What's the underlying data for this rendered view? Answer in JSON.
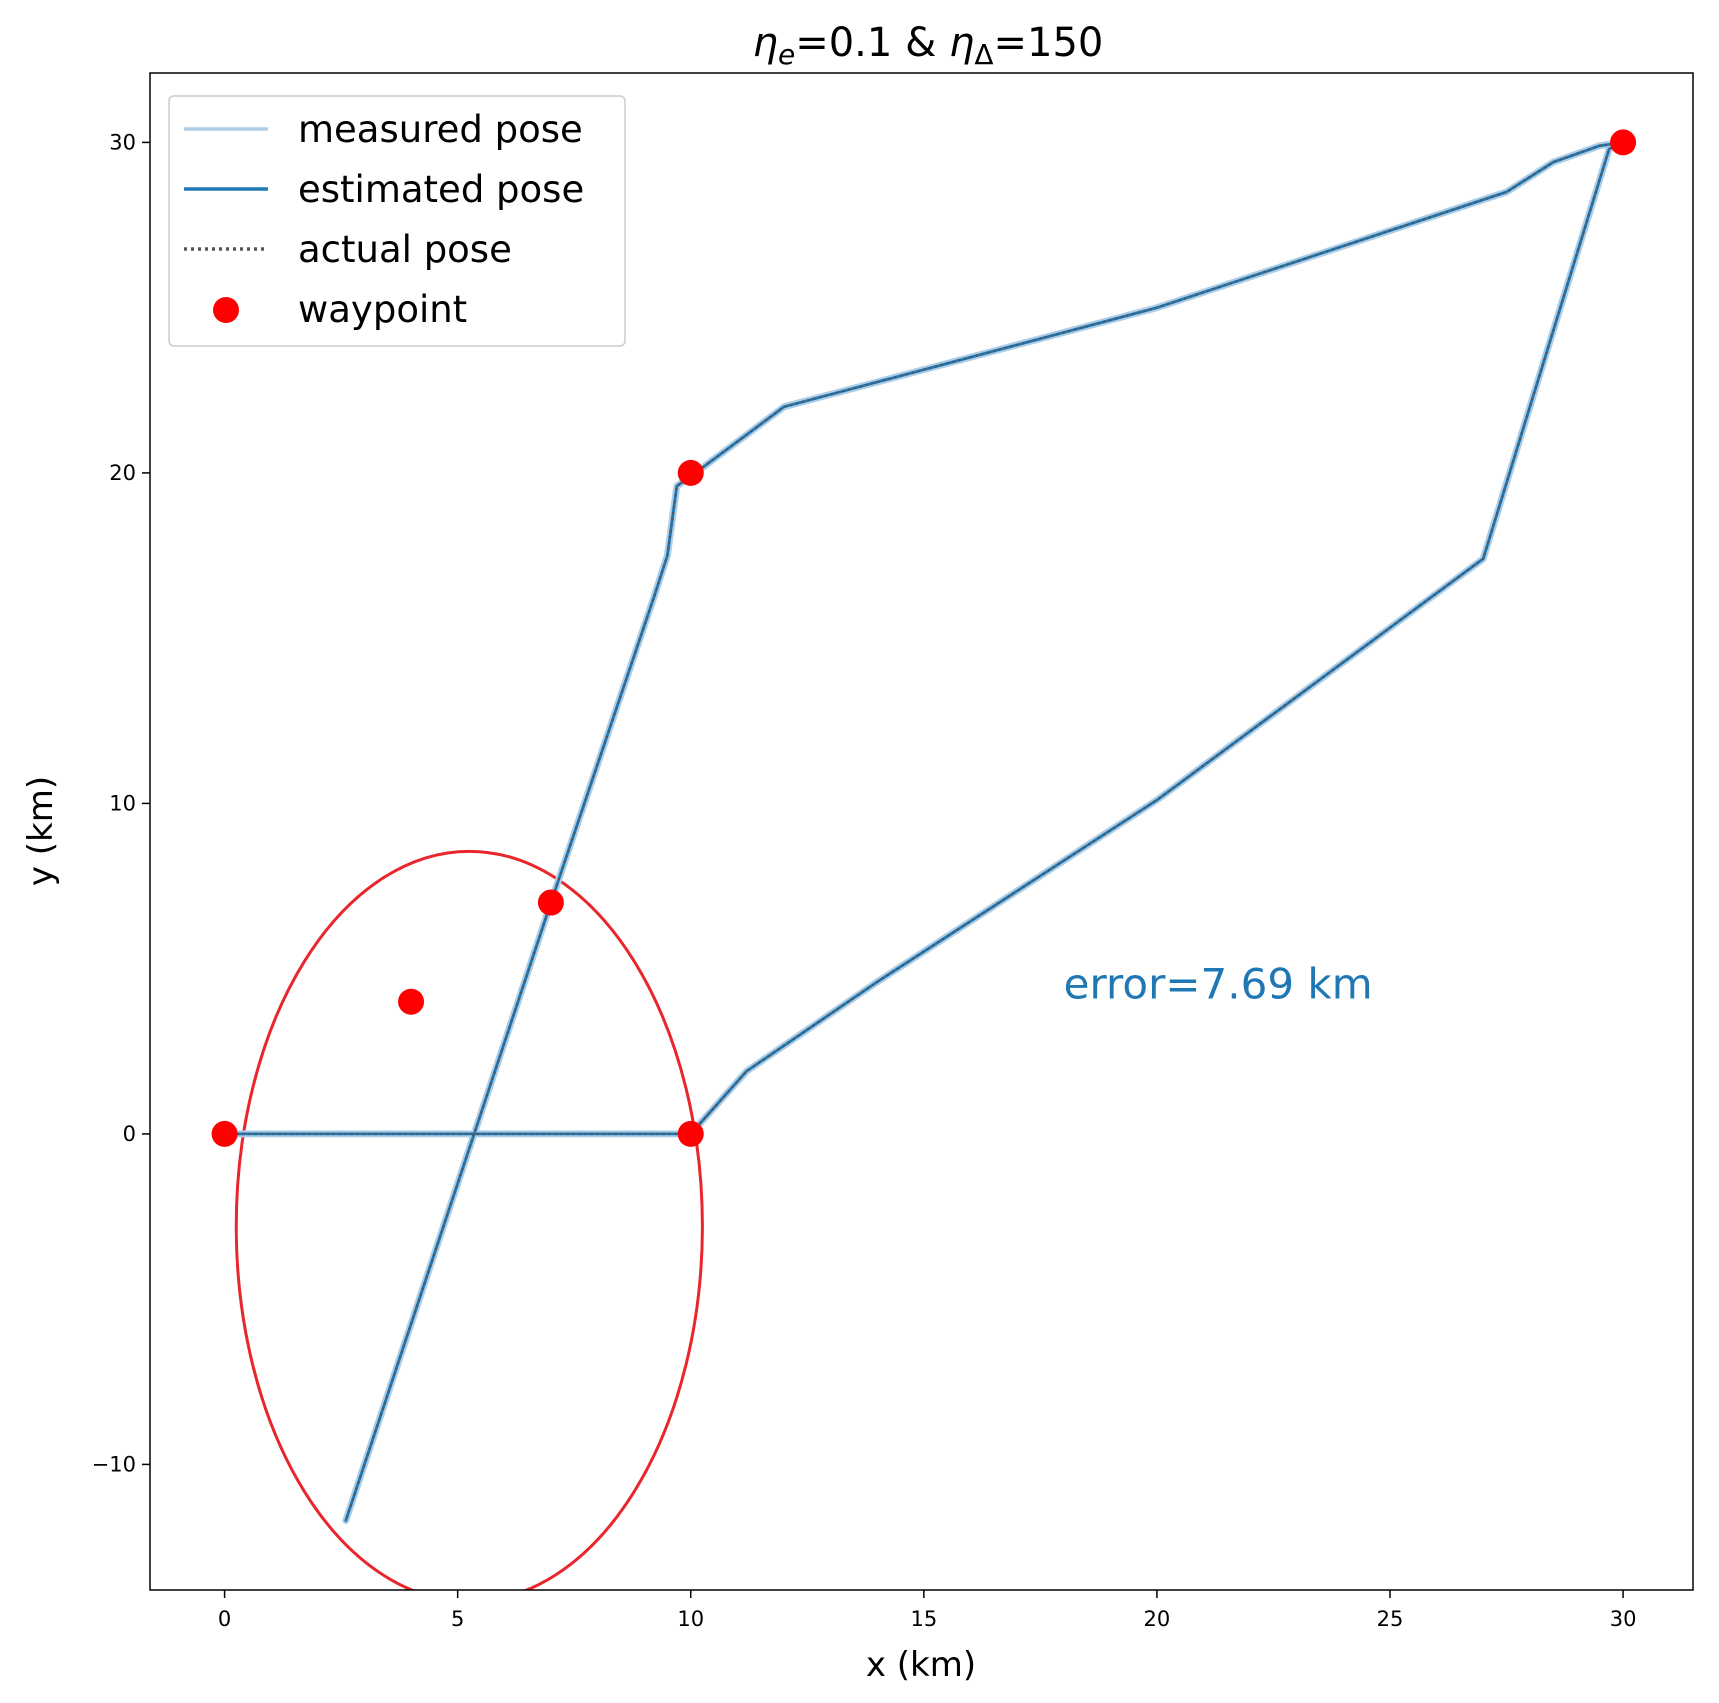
{
  "chart_data": {
    "type": "line",
    "title": {
      "parts": [
        {
          "text": "η",
          "style": "italic"
        },
        {
          "text": "e",
          "style": "italic-sub"
        },
        {
          "text": "=0.1 & ",
          "style": "normal"
        },
        {
          "text": "η",
          "style": "italic"
        },
        {
          "text": "Δ",
          "style": "sub"
        },
        {
          "text": "=150",
          "style": "normal"
        }
      ]
    },
    "xlabel": "x (km)",
    "ylabel": "y (km)",
    "xlim": [
      -1.6,
      31.5
    ],
    "ylim": [
      -13.8,
      32.1
    ],
    "xticks": [
      0,
      5,
      10,
      15,
      20,
      25,
      30
    ],
    "yticks": [
      -10,
      0,
      10,
      20,
      30
    ],
    "ytick_labels": [
      "−10",
      "0",
      "10",
      "20",
      "30"
    ],
    "grid": false,
    "legend_position": "upper-left",
    "series": [
      {
        "name": "measured pose",
        "color": "#aecde6",
        "style": "solid",
        "points": [
          [
            0,
            0
          ],
          [
            10,
            0
          ],
          [
            11.2,
            1.9
          ],
          [
            14,
            4.6
          ],
          [
            20,
            10.1
          ],
          [
            27,
            17.4
          ],
          [
            29.7,
            29.8
          ],
          [
            30,
            30
          ],
          [
            29.5,
            29.9
          ],
          [
            28.5,
            29.4
          ],
          [
            27.5,
            28.5
          ],
          [
            20,
            25
          ],
          [
            12,
            22
          ],
          [
            10.1,
            20
          ],
          [
            9.7,
            19.6
          ],
          [
            9.5,
            17.5
          ],
          [
            9.2,
            16.2
          ],
          [
            7,
            7
          ],
          [
            2.6,
            -11.7
          ]
        ]
      },
      {
        "name": "estimated pose",
        "color": "#1f77b4",
        "style": "solid",
        "points": [
          [
            0,
            0
          ],
          [
            10,
            0
          ],
          [
            11.2,
            1.9
          ],
          [
            14,
            4.6
          ],
          [
            20,
            10.1
          ],
          [
            27,
            17.4
          ],
          [
            29.7,
            29.8
          ],
          [
            30,
            30
          ],
          [
            29.5,
            29.9
          ],
          [
            28.5,
            29.4
          ],
          [
            27.5,
            28.5
          ],
          [
            20,
            25
          ],
          [
            12,
            22
          ],
          [
            10.1,
            20
          ],
          [
            9.7,
            19.6
          ],
          [
            9.5,
            17.5
          ],
          [
            9.2,
            16.2
          ],
          [
            7,
            7
          ],
          [
            2.6,
            -11.7
          ]
        ]
      },
      {
        "name": "actual pose",
        "color": "#555555",
        "style": "dotted",
        "points": [
          [
            0,
            0
          ],
          [
            10,
            0
          ],
          [
            11.2,
            1.9
          ],
          [
            14,
            4.6
          ],
          [
            20,
            10.1
          ],
          [
            27,
            17.4
          ],
          [
            29.7,
            29.8
          ],
          [
            30,
            30
          ],
          [
            29.5,
            29.9
          ],
          [
            28.5,
            29.4
          ],
          [
            27.5,
            28.5
          ],
          [
            20,
            25
          ],
          [
            12,
            22
          ],
          [
            10.1,
            20
          ],
          [
            9.7,
            19.6
          ],
          [
            9.5,
            17.5
          ],
          [
            9.2,
            16.2
          ],
          [
            7,
            7
          ],
          [
            2.6,
            -11.7
          ]
        ]
      }
    ],
    "waypoints": {
      "name": "waypoint",
      "color": "#ff0000",
      "points": [
        [
          0,
          0
        ],
        [
          10,
          0
        ],
        [
          30,
          30
        ],
        [
          10,
          20
        ],
        [
          7,
          7
        ],
        [
          4,
          4
        ]
      ]
    },
    "ellipse": {
      "color": "#e8262c",
      "center": [
        5.25,
        -2.8
      ],
      "radius_x": 5.0,
      "radius_y": 11.35
    },
    "annotation": {
      "text": "error=7.69 km",
      "color": "#1f77b4",
      "x": 18.0,
      "y": 4.1
    }
  }
}
